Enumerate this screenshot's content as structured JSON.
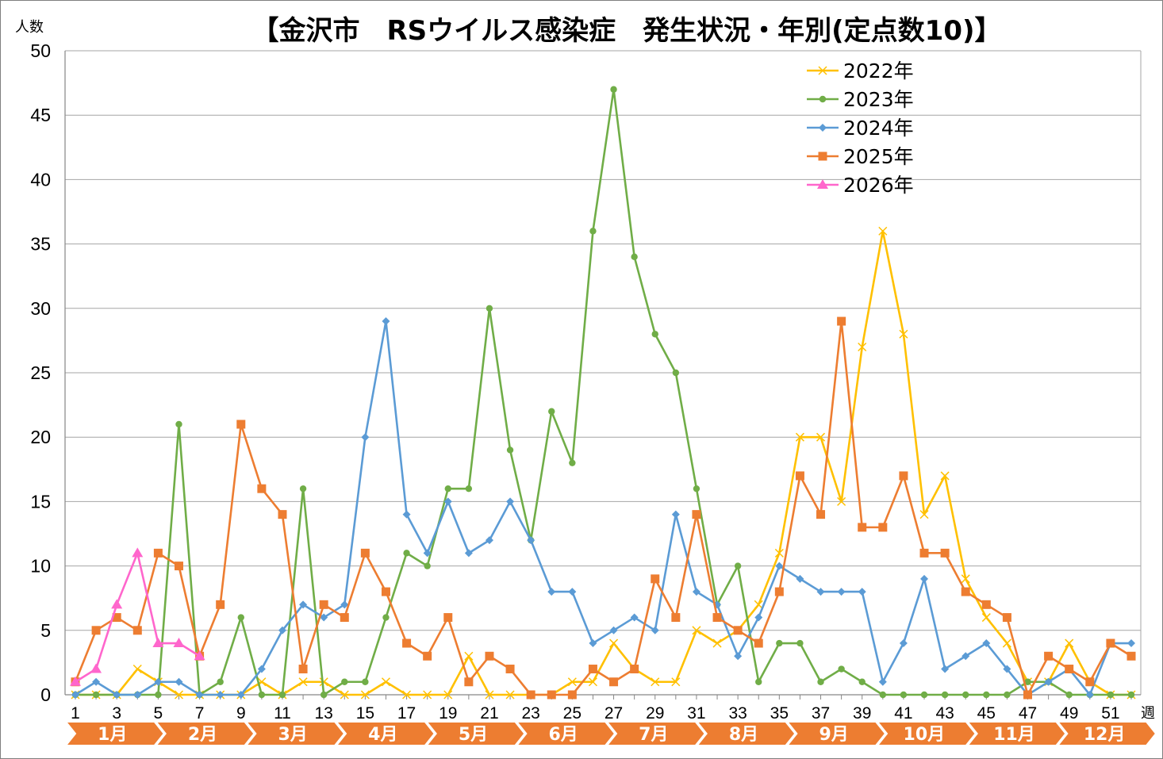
{
  "chart_data": {
    "type": "line",
    "title": "【金沢市　RSウイルス感染症　発生状況・年別(定点数10)】",
    "ylabel": "人数",
    "xlabel": "週",
    "ylim": [
      0,
      50
    ],
    "yticks": [
      0,
      5,
      10,
      15,
      20,
      25,
      30,
      35,
      40,
      45,
      50
    ],
    "xticks": [
      1,
      3,
      5,
      7,
      9,
      11,
      13,
      15,
      17,
      19,
      21,
      23,
      25,
      27,
      29,
      31,
      33,
      35,
      37,
      39,
      41,
      43,
      45,
      47,
      49,
      51
    ],
    "months": [
      "1月",
      "2月",
      "3月",
      "4月",
      "5月",
      "6月",
      "7月",
      "8月",
      "9月",
      "10月",
      "11月",
      "12月"
    ],
    "grid": true,
    "legend_position": "top-right",
    "series": [
      {
        "name": "2022年",
        "color": "#ffc000",
        "marker": "x",
        "values": [
          0,
          0,
          0,
          2,
          1,
          0,
          0,
          0,
          0,
          1,
          0,
          1,
          1,
          0,
          0,
          1,
          0,
          0,
          0,
          3,
          0,
          0,
          0,
          0,
          1,
          1,
          4,
          2,
          1,
          1,
          5,
          4,
          5,
          7,
          11,
          20,
          20,
          15,
          27,
          36,
          28,
          14,
          17,
          9,
          6,
          4,
          1,
          1,
          4,
          1,
          0,
          0
        ]
      },
      {
        "name": "2023年",
        "color": "#70ad47",
        "marker": "circle",
        "values": [
          0,
          0,
          0,
          0,
          0,
          21,
          0,
          1,
          6,
          0,
          0,
          16,
          0,
          1,
          1,
          6,
          11,
          10,
          16,
          16,
          30,
          19,
          12,
          22,
          18,
          36,
          47,
          34,
          28,
          25,
          16,
          7,
          10,
          1,
          4,
          4,
          1,
          2,
          1,
          0,
          0,
          0,
          0,
          0,
          0,
          0,
          1,
          1,
          0,
          0,
          0,
          0
        ]
      },
      {
        "name": "2024年",
        "color": "#5b9bd5",
        "marker": "diamond",
        "values": [
          0,
          1,
          0,
          0,
          1,
          1,
          0,
          0,
          0,
          2,
          5,
          7,
          6,
          7,
          20,
          29,
          14,
          11,
          15,
          11,
          12,
          15,
          12,
          8,
          8,
          4,
          5,
          6,
          5,
          14,
          8,
          7,
          3,
          6,
          10,
          9,
          8,
          8,
          8,
          1,
          4,
          9,
          2,
          3,
          4,
          2,
          0,
          1,
          2,
          0,
          4,
          4
        ]
      },
      {
        "name": "2025年",
        "color": "#ed7d31",
        "marker": "square",
        "values": [
          1,
          5,
          6,
          5,
          11,
          10,
          3,
          7,
          21,
          16,
          14,
          2,
          7,
          6,
          11,
          8,
          4,
          3,
          6,
          1,
          3,
          2,
          0,
          0,
          0,
          2,
          1,
          2,
          9,
          6,
          14,
          6,
          5,
          4,
          8,
          17,
          14,
          29,
          13,
          13,
          17,
          11,
          11,
          8,
          7,
          6,
          0,
          3,
          2,
          1,
          4,
          3
        ]
      },
      {
        "name": "2026年",
        "color": "#ff66cc",
        "marker": "triangle",
        "values": [
          1,
          2,
          7,
          11,
          4,
          4,
          3
        ]
      }
    ]
  },
  "colors": {
    "month_band": "#ed7d31",
    "grid": "#a6a6a6",
    "axis": "#868686"
  }
}
